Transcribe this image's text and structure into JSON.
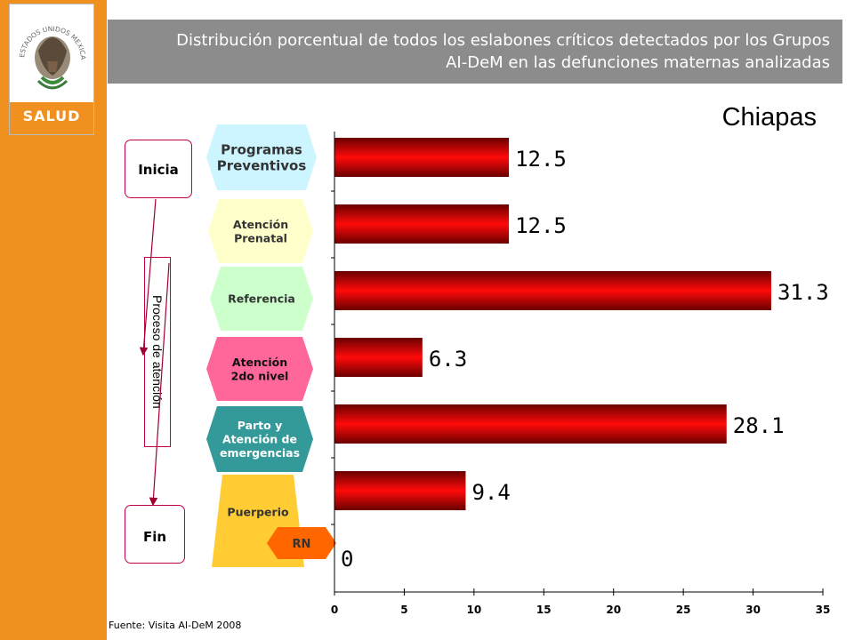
{
  "header": {
    "title_line1": "Distribución porcentual de todos los eslabones críticos detectados por los Grupos",
    "title_line2": "AI-DeM en las defunciones maternas analizadas"
  },
  "logo": {
    "arc_text": "ESTADOS UNIDOS MEXICANOS",
    "label": "SALUD"
  },
  "state": "Chiapas",
  "flow": {
    "start": "Inicia",
    "end": "Fin",
    "process": "Proceso de atención"
  },
  "stages": [
    {
      "lines": [
        "Programas",
        "Preventivos"
      ],
      "color": "#ccf5ff"
    },
    {
      "lines": [
        "Atención",
        "Prenatal"
      ],
      "color": "#ffffcc"
    },
    {
      "lines": [
        "Referencia"
      ],
      "color": "#ccffcc"
    },
    {
      "lines": [
        "Atención",
        "2do nivel"
      ],
      "color": "#ff6699"
    },
    {
      "lines": [
        "Parto y",
        "Atención de",
        "emergencias"
      ],
      "color": "#339999"
    },
    {
      "lines": [
        "Puerperio"
      ],
      "color": "#ffcc33"
    }
  ],
  "rn": {
    "label": "RN",
    "color": "#ff6600"
  },
  "source": "Fuente: Visita AI-DeM 2008",
  "chart_data": {
    "type": "bar",
    "orientation": "horizontal",
    "categories": [
      "Programas Preventivos",
      "Atención Prenatal",
      "Referencia",
      "Atención 2do nivel",
      "Parto y Atención de emergencias",
      "Puerperio",
      "RN"
    ],
    "values": [
      12.5,
      12.5,
      31.3,
      6.3,
      28.1,
      9.4,
      0
    ],
    "value_labels": [
      "12.5",
      "12.5",
      "31.3",
      "6.3",
      "28.1",
      "9.4",
      "0"
    ],
    "xlim": [
      0,
      35
    ],
    "xticks": [
      "0",
      "5",
      "10",
      "15",
      "20",
      "25",
      "30",
      "35"
    ],
    "bar_color": "#e8000a",
    "grid": false
  }
}
